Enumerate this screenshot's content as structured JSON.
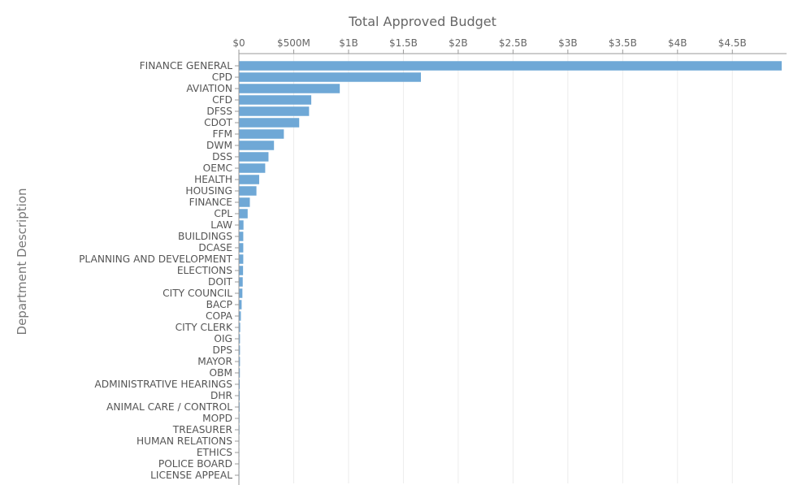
{
  "chart_data": {
    "type": "bar",
    "orientation": "horizontal",
    "title": "Total Approved Budget",
    "ylabel": "Department Description",
    "xlabel": "",
    "xlim": [
      0,
      4950000000
    ],
    "x_ticks": [
      {
        "value": 0,
        "label": "$0"
      },
      {
        "value": 500000000,
        "label": "$500M"
      },
      {
        "value": 1000000000,
        "label": "$1B"
      },
      {
        "value": 1500000000,
        "label": "$1.5B"
      },
      {
        "value": 2000000000,
        "label": "$2B"
      },
      {
        "value": 2500000000,
        "label": "$2.5B"
      },
      {
        "value": 3000000000,
        "label": "$3B"
      },
      {
        "value": 3500000000,
        "label": "$3.5B"
      },
      {
        "value": 4000000000,
        "label": "$4B"
      },
      {
        "value": 4500000000,
        "label": "$4.5B"
      }
    ],
    "grid": true,
    "bar_color": "#6fa8d6",
    "categories": [
      "FINANCE GENERAL",
      "CPD",
      "AVIATION",
      "CFD",
      "DFSS",
      "CDOT",
      "FFM",
      "DWM",
      "DSS",
      "OEMC",
      "HEALTH",
      "HOUSING",
      "FINANCE",
      "CPL",
      "LAW",
      "BUILDINGS",
      "DCASE",
      "PLANNING AND DEVELOPMENT",
      "ELECTIONS",
      "DOIT",
      "CITY COUNCIL",
      "BACP",
      "COPA",
      "CITY CLERK",
      "OIG",
      "DPS",
      "MAYOR",
      "OBM",
      "ADMINISTRATIVE HEARINGS",
      "DHR",
      "ANIMAL CARE / CONTROL",
      "MOPD",
      "TREASURER",
      "HUMAN RELATIONS",
      "ETHICS",
      "POLICE BOARD",
      "LICENSE APPEAL"
    ],
    "values": [
      4950000000,
      1660000000,
      920000000,
      660000000,
      640000000,
      550000000,
      410000000,
      320000000,
      270000000,
      240000000,
      185000000,
      160000000,
      100000000,
      80000000,
      42000000,
      40000000,
      40000000,
      40000000,
      38000000,
      35000000,
      32000000,
      25000000,
      18000000,
      12000000,
      10000000,
      10000000,
      10000000,
      9000000,
      8000000,
      8000000,
      7000000,
      6000000,
      6000000,
      3000000,
      1500000,
      500000,
      200000
    ]
  }
}
